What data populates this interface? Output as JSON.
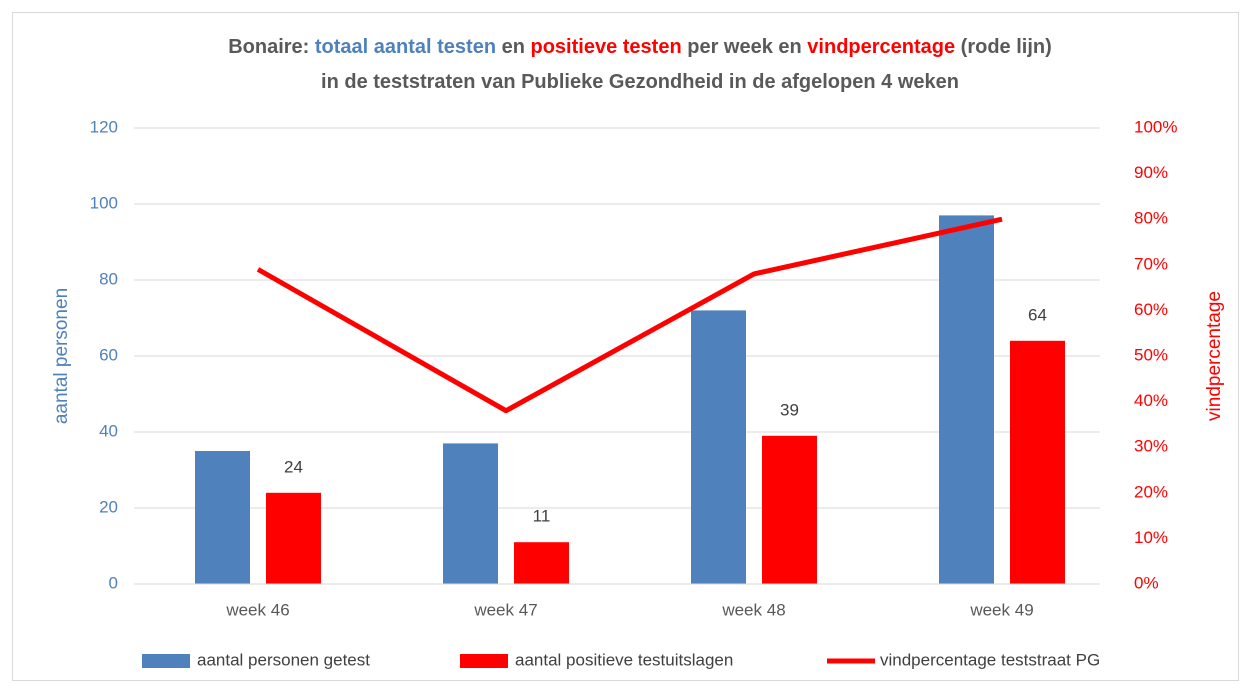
{
  "chart_data": {
    "type": "bar",
    "title": [
      [
        {
          "text": "Bonaire: ",
          "color": "#595959"
        },
        {
          "text": "totaal aantal testen",
          "color": "#4f81bd"
        },
        {
          "text": " en ",
          "color": "#595959"
        },
        {
          "text": "positieve testen",
          "color": "#ff0000"
        },
        {
          "text": " per week en ",
          "color": "#595959"
        },
        {
          "text": "vindpercentage",
          "color": "#ff0000"
        },
        {
          "text": " (rode lijn)",
          "color": "#595959"
        }
      ],
      [
        {
          "text": "in de teststraten van Publieke Gezondheid in de afgelopen 4 weken",
          "color": "#595959"
        }
      ]
    ],
    "ylabel": "aantal personen",
    "y2label": "vindpercentage",
    "categories": [
      "week 46",
      "week 47",
      "week 48",
      "week 49"
    ],
    "series": [
      {
        "name": "aantal personen getest",
        "type": "bar",
        "color": "#4f81bd",
        "values": [
          35,
          37,
          72,
          97
        ]
      },
      {
        "name": "aantal positieve testuitslagen",
        "type": "bar",
        "color": "#ff0000",
        "values": [
          24,
          11,
          39,
          64
        ],
        "data_labels": true
      },
      {
        "name": "vindpercentage teststraat PG",
        "type": "line",
        "color": "#ff0000",
        "axis": "y2",
        "values": [
          69,
          38,
          68,
          80
        ]
      }
    ],
    "ylim": [
      0,
      120
    ],
    "yticks": [
      0,
      20,
      40,
      60,
      80,
      100,
      120
    ],
    "ycolor": "#4f81bd",
    "y2lim": [
      0,
      100
    ],
    "y2color": "#ff0000",
    "y2ticks": [
      {
        "value": 0,
        "label": "0%"
      },
      {
        "value": 10,
        "label": "10%"
      },
      {
        "value": 20,
        "label": "20%"
      },
      {
        "value": 30,
        "label": "30%"
      },
      {
        "value": 40,
        "label": "40%"
      },
      {
        "value": 50,
        "label": "50%"
      },
      {
        "value": 60,
        "label": "60%"
      },
      {
        "value": 70,
        "label": "70%"
      },
      {
        "value": 80,
        "label": "80%"
      },
      {
        "value": 90,
        "label": "90%"
      },
      {
        "value": 100,
        "label": "100%"
      }
    ],
    "grid": true,
    "legend": "bottom"
  }
}
